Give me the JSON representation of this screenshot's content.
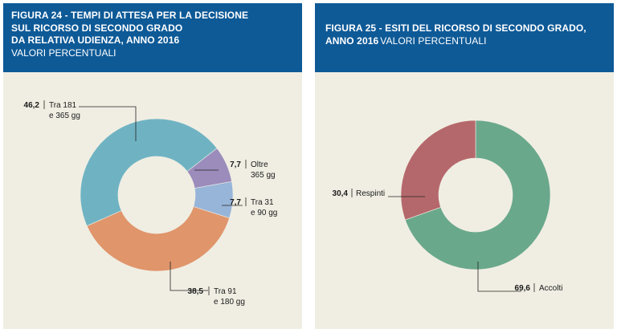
{
  "chart_data": [
    {
      "type": "pie",
      "title": "FIGURA 24 - TEMPI DI ATTESA PER LA DECISIONE SUL RICORSO DI SECONDO GRADO DA RELATIVA UDIENZA, ANNO 2016",
      "title_lines": [
        "FIGURA 24 - TEMPI DI ATTESA PER LA DECISIONE",
        "SUL RICORSO DI SECONDO GRADO",
        "DA RELATIVA UDIENZA, ANNO 2016"
      ],
      "subtitle": "VALORI PERCENTUALI",
      "categories": [
        "Oltre 365 gg",
        "Tra 31 e 90 gg",
        "Tra 91 e 180 gg",
        "Tra 181 e 365 gg"
      ],
      "values": [
        7.7,
        7.7,
        38.5,
        46.2
      ],
      "value_labels": [
        "7,7",
        "7,7",
        "38,5",
        "46,2"
      ],
      "label_lines": [
        [
          "Oltre",
          "365 gg"
        ],
        [
          "Tra 31",
          "e 90 gg"
        ],
        [
          "Tra 91",
          "e 180 gg"
        ],
        [
          "Tra 181",
          "e 365 gg"
        ]
      ],
      "colors": [
        "#9b8cbc",
        "#97b5d9",
        "#e0956b",
        "#6fb3c3"
      ]
    },
    {
      "type": "pie",
      "title": "FIGURA 25 - ESITI DEL RICORSO DI SECONDO GRADO, ANNO 2016",
      "title_lines": [
        "FIGURA 25 - ESITI DEL RICORSO DI SECONDO GRADO,",
        "ANNO 2016"
      ],
      "subtitle": "VALORI PERCENTUALI",
      "categories": [
        "Accolti",
        "Respinti"
      ],
      "values": [
        69.6,
        30.4
      ],
      "value_labels": [
        "69,6",
        "30,4"
      ],
      "label_lines": [
        [
          "Accolti"
        ],
        [
          "Respinti"
        ]
      ],
      "colors": [
        "#6aa88c",
        "#b5686b"
      ]
    }
  ]
}
